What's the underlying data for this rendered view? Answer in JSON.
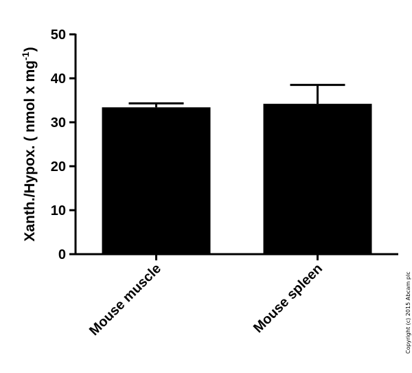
{
  "chart_data": {
    "type": "bar",
    "categories": [
      "Mouse muscle",
      "Mouse spleen"
    ],
    "values": [
      33.4,
      34.2
    ],
    "errors": [
      0.9,
      4.3
    ],
    "title": "",
    "xlabel": "",
    "ylabel_main": "Xanth./Hypox. ( nmol x mg",
    "ylabel_sup": "-1",
    "ylabel_end": ")",
    "ylim": [
      0,
      50
    ],
    "yticks": [
      "0",
      "10",
      "20",
      "30",
      "40",
      "50"
    ],
    "grid": false,
    "bar_color": "#000000"
  },
  "copyright": "Copyright (c) 2015 Abcam plc"
}
